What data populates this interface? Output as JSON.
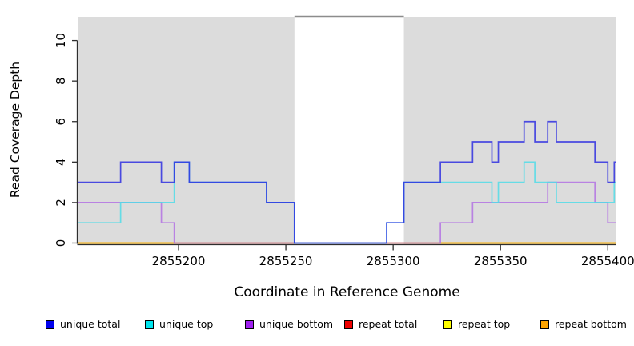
{
  "figure": {
    "background": "#FFFFFF"
  },
  "chart_data": {
    "type": "line",
    "subtype": "step-post",
    "title": "",
    "xlabel": "Coordinate in Reference Genome",
    "ylabel": "Read Coverage Depth",
    "xlim": [
      2855153,
      2855404
    ],
    "ylim": [
      0,
      11.17
    ],
    "x_ticks": [
      2855200,
      2855250,
      2855300,
      2855350,
      2855400
    ],
    "y_ticks": [
      0,
      2,
      4,
      6,
      8,
      10
    ],
    "grid": false,
    "legend_position": "bottom",
    "plot_background": "#DCDCDC",
    "masked_region": {
      "start": 2855254,
      "end": 2855305,
      "color": "#FFFFFF",
      "top_border_color": "#8C8C8C"
    },
    "series": [
      {
        "name": "unique total",
        "line_color": "#2828E0",
        "steps": [
          [
            2855153,
            3
          ],
          [
            2855173,
            4
          ],
          [
            2855192,
            3
          ],
          [
            2855198,
            4
          ],
          [
            2855205,
            3
          ],
          [
            2855241,
            2
          ],
          [
            2855254,
            0
          ],
          [
            2855297,
            1
          ],
          [
            2855305,
            3
          ],
          [
            2855322,
            4
          ],
          [
            2855337,
            5
          ],
          [
            2855346,
            4
          ],
          [
            2855349,
            5
          ],
          [
            2855361,
            6
          ],
          [
            2855366,
            5
          ],
          [
            2855372,
            6
          ],
          [
            2855376,
            5
          ],
          [
            2855394,
            4
          ],
          [
            2855400,
            3
          ],
          [
            2855403,
            4
          ]
        ]
      },
      {
        "name": "unique top",
        "line_color": "#50DCE8",
        "steps": [
          [
            2855153,
            1
          ],
          [
            2855173,
            2
          ],
          [
            2855198,
            4
          ],
          [
            2855205,
            3
          ],
          [
            2855241,
            2
          ],
          [
            2855254,
            0
          ],
          [
            2855297,
            1
          ],
          [
            2855305,
            3
          ],
          [
            2855346,
            2
          ],
          [
            2855349,
            3
          ],
          [
            2855361,
            4
          ],
          [
            2855366,
            3
          ],
          [
            2855376,
            2
          ],
          [
            2855403,
            3
          ]
        ]
      },
      {
        "name": "unique bottom",
        "line_color": "#B06CE4",
        "steps": [
          [
            2855153,
            2
          ],
          [
            2855192,
            1
          ],
          [
            2855198,
            0
          ],
          [
            2855322,
            1
          ],
          [
            2855337,
            2
          ],
          [
            2855372,
            3
          ],
          [
            2855394,
            2
          ],
          [
            2855400,
            1
          ]
        ]
      },
      {
        "name": "repeat total",
        "line_color": "#DD2222",
        "steps": [
          [
            2855153,
            0
          ]
        ]
      },
      {
        "name": "repeat top",
        "line_color": "#FFFF00",
        "steps": [
          [
            2855153,
            0
          ]
        ]
      },
      {
        "name": "repeat bottom",
        "line_color": "#FFA500",
        "steps": [
          [
            2855153,
            0
          ]
        ]
      }
    ]
  },
  "legend": {
    "items": [
      {
        "label": "unique total",
        "color": "#0000EE"
      },
      {
        "label": "unique top",
        "color": "#00E5EE"
      },
      {
        "label": "unique bottom",
        "color": "#A020F0"
      },
      {
        "label": "repeat total",
        "color": "#EE0000"
      },
      {
        "label": "repeat top",
        "color": "#FFFF00"
      },
      {
        "label": "repeat bottom",
        "color": "#FFA500"
      }
    ]
  }
}
